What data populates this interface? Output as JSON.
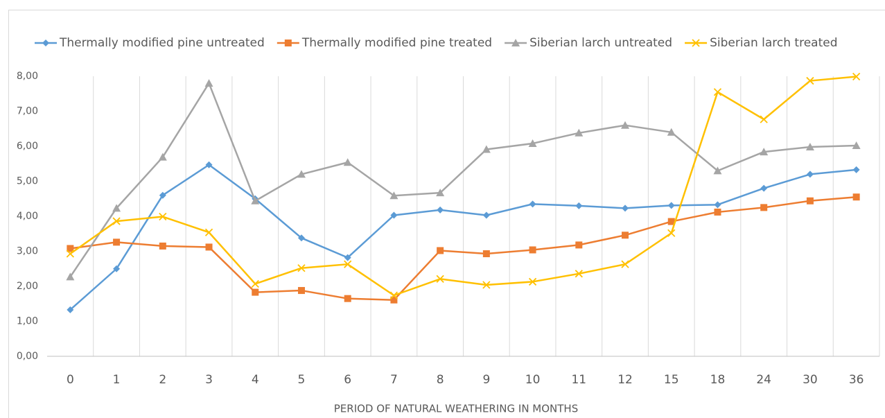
{
  "chart_data": {
    "type": "line",
    "x_label": "PERIOD OF NATURAL WEATHERING IN MONTHS",
    "categories": [
      "0",
      "1",
      "2",
      "3",
      "4",
      "5",
      "6",
      "7",
      "8",
      "9",
      "10",
      "11",
      "12",
      "15",
      "18",
      "24",
      "30",
      "36"
    ],
    "series": [
      {
        "name": "Thermally modified pine untreated",
        "color": "#5b9bd5",
        "marker": "diamond",
        "values": [
          1.33,
          2.5,
          4.6,
          5.47,
          4.5,
          3.38,
          2.82,
          4.03,
          4.18,
          4.03,
          4.35,
          4.3,
          4.23,
          4.31,
          4.33,
          4.8,
          5.2,
          5.33
        ]
      },
      {
        "name": "Thermally modified pine treated",
        "color": "#ed7d31",
        "marker": "square",
        "values": [
          3.08,
          3.26,
          3.15,
          3.12,
          1.83,
          1.88,
          1.65,
          1.61,
          3.02,
          2.93,
          3.04,
          3.18,
          3.46,
          3.85,
          4.12,
          4.25,
          4.44,
          4.55
        ]
      },
      {
        "name": "Siberian larch untreated",
        "color": "#a5a5a5",
        "marker": "triangle",
        "values": [
          2.27,
          4.23,
          5.69,
          7.8,
          4.44,
          5.2,
          5.54,
          4.59,
          4.67,
          5.91,
          6.08,
          6.38,
          6.6,
          6.4,
          5.3,
          5.84,
          5.98,
          6.02
        ]
      },
      {
        "name": "Siberian larch treated",
        "color": "#ffc000",
        "marker": "x",
        "values": [
          2.93,
          3.86,
          3.99,
          3.54,
          2.07,
          2.52,
          2.63,
          1.74,
          2.21,
          2.04,
          2.13,
          2.36,
          2.63,
          3.52,
          7.55,
          6.77,
          7.87,
          7.99
        ]
      }
    ],
    "ylim": [
      0,
      8
    ],
    "yticks": [
      {
        "value": 0,
        "label": "0,00"
      },
      {
        "value": 1,
        "label": "1,00"
      },
      {
        "value": 2,
        "label": "2,00"
      },
      {
        "value": 3,
        "label": "3,00"
      },
      {
        "value": 4,
        "label": "4,00"
      },
      {
        "value": 5,
        "label": "5,00"
      },
      {
        "value": 6,
        "label": "6,00"
      },
      {
        "value": 7,
        "label": "7,00"
      },
      {
        "value": 8,
        "label": "8,00"
      }
    ],
    "grid": "vertical",
    "legend": "top"
  }
}
